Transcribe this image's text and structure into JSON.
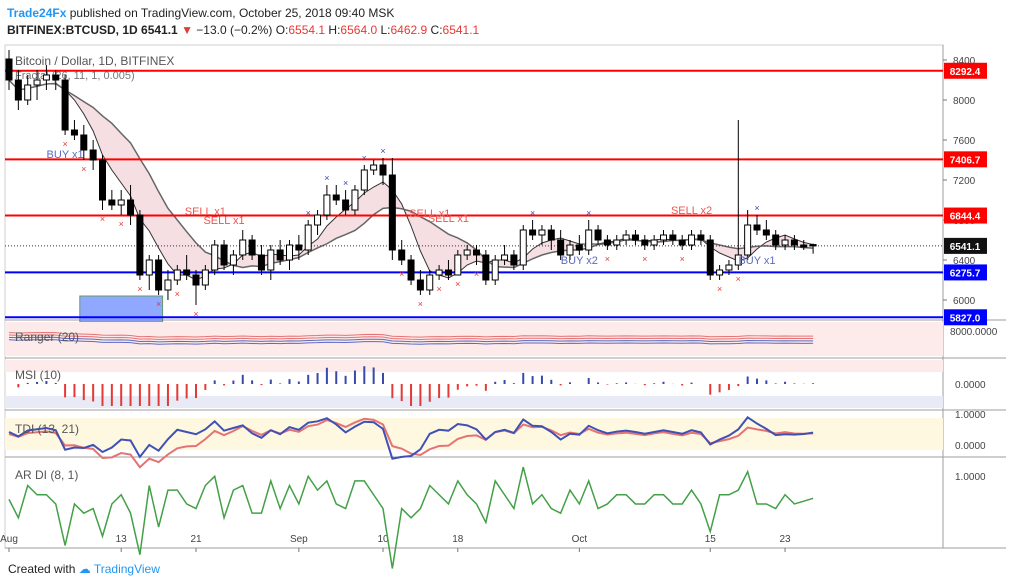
{
  "header": {
    "brand": "Trade24Fx",
    "published": "published on TradingView.com, October 25, 2018 09:40 MSK",
    "symbol": "BITFINEX:BTCUSD, 1D",
    "last": "6541.1",
    "change": "−13.0 (−0.2%)",
    "o_label": "O:",
    "o": "6554.1",
    "h_label": "H:",
    "h": "6564.0",
    "l_label": "L:",
    "l": "6462.9",
    "c_label": "C:",
    "c": "6541.1"
  },
  "footer": {
    "created": "Created with",
    "brand": "TradingView"
  },
  "chart_data": {
    "type": "candlestick",
    "title": "Bitcoin / Dollar, 1D, BITFINEX",
    "indicator_label": "Fractal (26, 11, 1, 0.005)",
    "price_axis": {
      "ticks": [
        6000,
        6400,
        6800,
        7200,
        7600,
        8000,
        8400
      ],
      "ylim": [
        5800,
        8550
      ]
    },
    "x_ticks": [
      {
        "label": "Aug",
        "day": 0
      },
      {
        "label": "13",
        "day": 12
      },
      {
        "label": "21",
        "day": 20
      },
      {
        "label": "Sep",
        "day": 31
      },
      {
        "label": "10",
        "day": 40
      },
      {
        "label": "18",
        "day": 48
      },
      {
        "label": "Oct",
        "day": 61
      },
      {
        "label": "15",
        "day": 75
      },
      {
        "label": "23",
        "day": 83
      }
    ],
    "levels": [
      {
        "value": 8292.4,
        "label": "8292.4",
        "color": "#ff0000"
      },
      {
        "value": 7406.7,
        "label": "7406.7",
        "color": "#ff0000"
      },
      {
        "value": 6844.4,
        "label": "6844.4",
        "color": "#ff0000"
      },
      {
        "value": 6275.7,
        "label": "6275.7",
        "color": "#0000ff"
      },
      {
        "value": 5827.0,
        "label": "5827.0",
        "color": "#0000ff"
      }
    ],
    "current_price": {
      "value": 6541.1,
      "label": "6541.1"
    },
    "zone": {
      "day_start": 8,
      "day_end": 16,
      "low": 5780,
      "high": 6040
    },
    "signals": [
      {
        "label": "BUY x1",
        "day": 6,
        "price": 7420,
        "color": "#5c6bc0"
      },
      {
        "label": "SELL x1",
        "day": 21,
        "price": 6850,
        "color": "#ef5350"
      },
      {
        "label": "SELL x1",
        "day": 23,
        "price": 6760,
        "color": "#ef5350"
      },
      {
        "label": "SELL x1",
        "day": 45,
        "price": 6830,
        "color": "#ef5350"
      },
      {
        "label": "SELL x1",
        "day": 47,
        "price": 6780,
        "color": "#ef5350"
      },
      {
        "label": "BUY x2",
        "day": 61,
        "price": 6360,
        "color": "#5c6bc0"
      },
      {
        "label": "SELL x2",
        "day": 73,
        "price": 6860,
        "color": "#ef5350"
      },
      {
        "label": "BUY x1",
        "day": 80,
        "price": 6360,
        "color": "#5c6bc0"
      }
    ],
    "candles": [
      {
        "o": 8410,
        "h": 8500,
        "l": 8100,
        "c": 8200
      },
      {
        "o": 8200,
        "h": 8300,
        "l": 7900,
        "c": 8000
      },
      {
        "o": 8000,
        "h": 8250,
        "l": 7950,
        "c": 8150
      },
      {
        "o": 8150,
        "h": 8300,
        "l": 8000,
        "c": 8200
      },
      {
        "o": 8200,
        "h": 8350,
        "l": 8100,
        "c": 8250
      },
      {
        "o": 8250,
        "h": 8300,
        "l": 8100,
        "c": 8200
      },
      {
        "o": 8200,
        "h": 8250,
        "l": 7650,
        "c": 7700
      },
      {
        "o": 7700,
        "h": 7800,
        "l": 7600,
        "c": 7650
      },
      {
        "o": 7650,
        "h": 7750,
        "l": 7400,
        "c": 7500
      },
      {
        "o": 7500,
        "h": 7600,
        "l": 7300,
        "c": 7400
      },
      {
        "o": 7400,
        "h": 7450,
        "l": 6900,
        "c": 7000
      },
      {
        "o": 7000,
        "h": 7100,
        "l": 6900,
        "c": 6950
      },
      {
        "o": 6950,
        "h": 7100,
        "l": 6850,
        "c": 7000
      },
      {
        "o": 7000,
        "h": 7150,
        "l": 6750,
        "c": 6850
      },
      {
        "o": 6850,
        "h": 6900,
        "l": 6200,
        "c": 6250
      },
      {
        "o": 6250,
        "h": 6450,
        "l": 6100,
        "c": 6400
      },
      {
        "o": 6400,
        "h": 6450,
        "l": 6050,
        "c": 6100
      },
      {
        "o": 6100,
        "h": 6300,
        "l": 6000,
        "c": 6200
      },
      {
        "o": 6200,
        "h": 6350,
        "l": 6150,
        "c": 6300
      },
      {
        "o": 6300,
        "h": 6450,
        "l": 6200,
        "c": 6250
      },
      {
        "o": 6250,
        "h": 6300,
        "l": 5950,
        "c": 6150
      },
      {
        "o": 6150,
        "h": 6350,
        "l": 6100,
        "c": 6300
      },
      {
        "o": 6300,
        "h": 6600,
        "l": 6250,
        "c": 6550
      },
      {
        "o": 6550,
        "h": 6600,
        "l": 6300,
        "c": 6350
      },
      {
        "o": 6350,
        "h": 6500,
        "l": 6250,
        "c": 6450
      },
      {
        "o": 6450,
        "h": 6700,
        "l": 6400,
        "c": 6600
      },
      {
        "o": 6600,
        "h": 6650,
        "l": 6400,
        "c": 6450
      },
      {
        "o": 6450,
        "h": 6550,
        "l": 6250,
        "c": 6300
      },
      {
        "o": 6300,
        "h": 6550,
        "l": 6200,
        "c": 6500
      },
      {
        "o": 6500,
        "h": 6600,
        "l": 6350,
        "c": 6400
      },
      {
        "o": 6400,
        "h": 6600,
        "l": 6300,
        "c": 6550
      },
      {
        "o": 6550,
        "h": 6650,
        "l": 6400,
        "c": 6500
      },
      {
        "o": 6500,
        "h": 6800,
        "l": 6450,
        "c": 6750
      },
      {
        "o": 6750,
        "h": 6900,
        "l": 6650,
        "c": 6850
      },
      {
        "o": 6850,
        "h": 7150,
        "l": 6800,
        "c": 7050
      },
      {
        "o": 7050,
        "h": 7150,
        "l": 6950,
        "c": 7000
      },
      {
        "o": 7000,
        "h": 7100,
        "l": 6850,
        "c": 6900
      },
      {
        "o": 6900,
        "h": 7150,
        "l": 6850,
        "c": 7100
      },
      {
        "o": 7100,
        "h": 7350,
        "l": 7050,
        "c": 7300
      },
      {
        "o": 7300,
        "h": 7400,
        "l": 7250,
        "c": 7350
      },
      {
        "o": 7350,
        "h": 7420,
        "l": 7150,
        "c": 7250
      },
      {
        "o": 7250,
        "h": 7420,
        "l": 6400,
        "c": 6500
      },
      {
        "o": 6500,
        "h": 6600,
        "l": 6350,
        "c": 6400
      },
      {
        "o": 6400,
        "h": 6450,
        "l": 6150,
        "c": 6200
      },
      {
        "o": 6200,
        "h": 6300,
        "l": 6050,
        "c": 6100
      },
      {
        "o": 6100,
        "h": 6300,
        "l": 6050,
        "c": 6250
      },
      {
        "o": 6250,
        "h": 6350,
        "l": 6200,
        "c": 6300
      },
      {
        "o": 6300,
        "h": 6400,
        "l": 6200,
        "c": 6250
      },
      {
        "o": 6250,
        "h": 6500,
        "l": 6250,
        "c": 6450
      },
      {
        "o": 6450,
        "h": 6550,
        "l": 6400,
        "c": 6500
      },
      {
        "o": 6500,
        "h": 6550,
        "l": 6350,
        "c": 6450
      },
      {
        "o": 6450,
        "h": 6500,
        "l": 6150,
        "c": 6200
      },
      {
        "o": 6200,
        "h": 6450,
        "l": 6150,
        "c": 6400
      },
      {
        "o": 6400,
        "h": 6550,
        "l": 6350,
        "c": 6450
      },
      {
        "o": 6450,
        "h": 6500,
        "l": 6300,
        "c": 6350
      },
      {
        "o": 6350,
        "h": 6750,
        "l": 6300,
        "c": 6700
      },
      {
        "o": 6700,
        "h": 6800,
        "l": 6600,
        "c": 6650
      },
      {
        "o": 6650,
        "h": 6750,
        "l": 6550,
        "c": 6700
      },
      {
        "o": 6700,
        "h": 6750,
        "l": 6500,
        "c": 6600
      },
      {
        "o": 6600,
        "h": 6700,
        "l": 6400,
        "c": 6450
      },
      {
        "o": 6450,
        "h": 6600,
        "l": 6400,
        "c": 6550
      },
      {
        "o": 6550,
        "h": 6650,
        "l": 6450,
        "c": 6500
      },
      {
        "o": 6500,
        "h": 6800,
        "l": 6450,
        "c": 6700
      },
      {
        "o": 6700,
        "h": 6750,
        "l": 6550,
        "c": 6600
      },
      {
        "o": 6600,
        "h": 6650,
        "l": 6500,
        "c": 6550
      },
      {
        "o": 6550,
        "h": 6650,
        "l": 6500,
        "c": 6600
      },
      {
        "o": 6600,
        "h": 6700,
        "l": 6550,
        "c": 6650
      },
      {
        "o": 6650,
        "h": 6700,
        "l": 6550,
        "c": 6600
      },
      {
        "o": 6600,
        "h": 6650,
        "l": 6500,
        "c": 6550
      },
      {
        "o": 6550,
        "h": 6650,
        "l": 6500,
        "c": 6600
      },
      {
        "o": 6600,
        "h": 6700,
        "l": 6550,
        "c": 6650
      },
      {
        "o": 6650,
        "h": 6700,
        "l": 6550,
        "c": 6600
      },
      {
        "o": 6600,
        "h": 6650,
        "l": 6500,
        "c": 6550
      },
      {
        "o": 6550,
        "h": 6700,
        "l": 6500,
        "c": 6650
      },
      {
        "o": 6650,
        "h": 6700,
        "l": 6550,
        "c": 6600
      },
      {
        "o": 6600,
        "h": 6650,
        "l": 6200,
        "c": 6250
      },
      {
        "o": 6250,
        "h": 6350,
        "l": 6200,
        "c": 6300
      },
      {
        "o": 6300,
        "h": 6400,
        "l": 6250,
        "c": 6350
      },
      {
        "o": 6350,
        "h": 7800,
        "l": 6300,
        "c": 6450
      },
      {
        "o": 6450,
        "h": 6900,
        "l": 6400,
        "c": 6750
      },
      {
        "o": 6750,
        "h": 6850,
        "l": 6650,
        "c": 6700
      },
      {
        "o": 6700,
        "h": 6800,
        "l": 6600,
        "c": 6650
      },
      {
        "o": 6650,
        "h": 6700,
        "l": 6500,
        "c": 6550
      },
      {
        "o": 6550,
        "h": 6650,
        "l": 6500,
        "c": 6600
      },
      {
        "o": 6600,
        "h": 6650,
        "l": 6500,
        "c": 6550
      },
      {
        "o": 6550,
        "h": 6600,
        "l": 6500,
        "c": 6530
      },
      {
        "o": 6554.1,
        "h": 6564.0,
        "l": 6462.9,
        "c": 6541.1
      }
    ],
    "panels": [
      {
        "name": "Ranger (20)",
        "tick": "8000.0000"
      },
      {
        "name": "MSI (10)",
        "tick": "0.0000"
      },
      {
        "name": "TDI (13, 21)",
        "ticks": [
          "1.0000",
          "0.0000"
        ]
      },
      {
        "name": "AR DI (8, 1)",
        "tick": "1.0000"
      }
    ]
  }
}
